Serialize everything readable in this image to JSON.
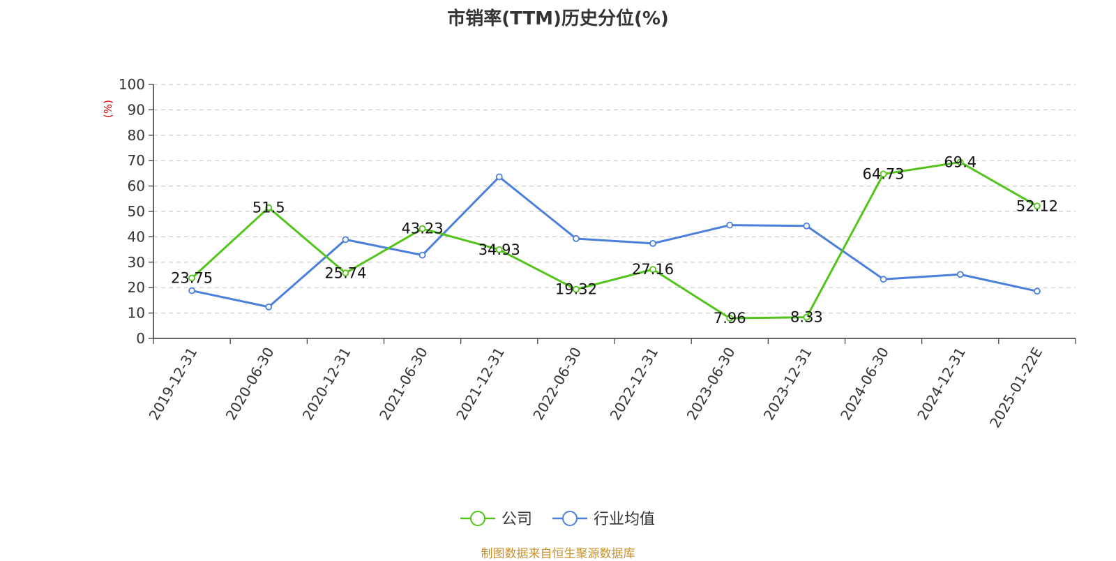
{
  "chart_data": {
    "type": "line",
    "title": "市销率(TTM)历史分位(%)",
    "ylabel": "(%)",
    "ylim": [
      0,
      100
    ],
    "yticks": [
      0,
      10,
      20,
      30,
      40,
      50,
      60,
      70,
      80,
      90,
      100
    ],
    "grid": true,
    "legend_position": "bottom",
    "categories": [
      "2019-12-31",
      "2020-06-30",
      "2020-12-31",
      "2021-06-30",
      "2021-12-31",
      "2022-06-30",
      "2022-12-31",
      "2023-06-30",
      "2023-12-31",
      "2024-06-30",
      "2024-12-31",
      "2025-01-22E"
    ],
    "series": [
      {
        "name": "公司",
        "color": "#52c41a",
        "values": [
          23.75,
          51.5,
          25.74,
          43.23,
          34.93,
          19.32,
          27.16,
          7.96,
          8.33,
          64.73,
          69.4,
          52.12
        ],
        "labels": [
          "23.75",
          "51.5",
          "25.74",
          "43.23",
          "34.93",
          "19.32",
          "27.16",
          "7.96",
          "8.33",
          "64.73",
          "69.4",
          "52.12"
        ]
      },
      {
        "name": "行业均值",
        "color": "#4a7fdc",
        "values": [
          18.8,
          12.4,
          38.9,
          32.8,
          63.6,
          39.3,
          37.4,
          44.6,
          44.3,
          23.3,
          25.2,
          18.6
        ]
      }
    ],
    "source": "制图数据来自恒生聚源数据库"
  }
}
